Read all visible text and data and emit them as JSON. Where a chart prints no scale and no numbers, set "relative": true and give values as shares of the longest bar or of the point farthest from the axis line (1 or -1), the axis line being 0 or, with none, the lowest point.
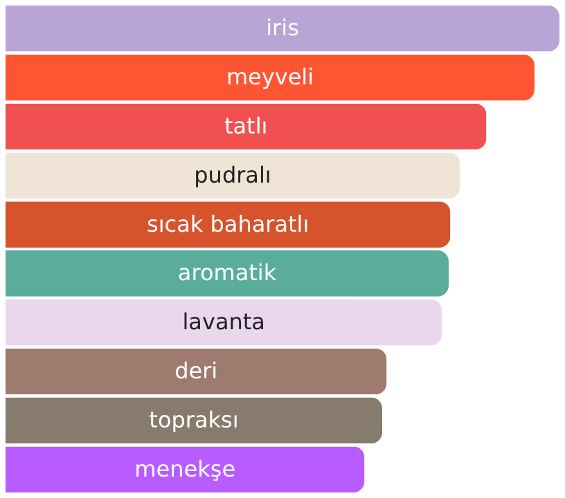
{
  "chart_data": {
    "type": "bar",
    "orientation": "horizontal",
    "relative": true,
    "categories": [
      "iris",
      "meyveli",
      "tatlı",
      "pudralı",
      "sıcak baharatlı",
      "aromatik",
      "lavanta",
      "deri",
      "topraksı",
      "menekşe"
    ],
    "values": [
      1,
      0.955,
      0.868,
      0.82,
      0.803,
      0.8,
      0.788,
      0.688,
      0.68,
      0.648
    ],
    "colors": [
      "#b9a4d6",
      "#ff5533",
      "#f05050",
      "#f0e4d6",
      "#d6532b",
      "#5aad9b",
      "#ead7ee",
      "#9e7b6e",
      "#867b6d",
      "#b85cff"
    ]
  }
}
